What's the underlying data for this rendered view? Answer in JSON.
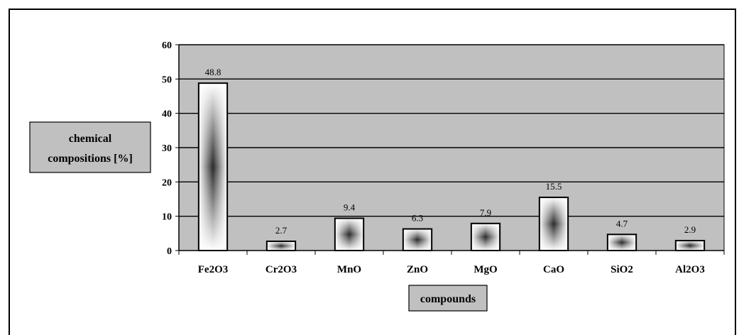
{
  "chart_data": {
    "type": "bar",
    "title": "",
    "xlabel": "compounds",
    "ylabel_lines": [
      "chemical",
      "compositions [%]"
    ],
    "categories": [
      "Fe2O3",
      "Cr2O3",
      "MnO",
      "ZnO",
      "MgO",
      "CaO",
      "SiO2",
      "Al2O3"
    ],
    "values": [
      48.8,
      2.7,
      9.4,
      6.3,
      7.9,
      15.5,
      4.7,
      2.9
    ],
    "data_labels": [
      "48.8",
      "2.7",
      "9.4",
      "6.3",
      "7.9",
      "15.5",
      "4.7",
      "2.9"
    ],
    "ylim": [
      0,
      60
    ],
    "yticks": [
      "0",
      "10",
      "20",
      "30",
      "40",
      "50",
      "60"
    ],
    "grid": true,
    "legend": "none",
    "colors": {
      "plot_background": "#c0c0c0",
      "bar_edge": "#000000",
      "bar_fill_light": "#ffffff",
      "bar_fill_dark": "#2a2a2a",
      "gridline": "#000000"
    }
  }
}
